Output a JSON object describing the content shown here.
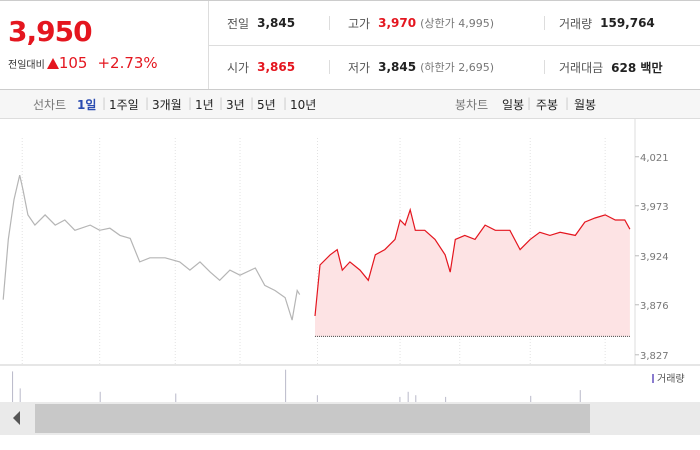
{
  "header": {
    "price": "3,950",
    "change_label": "전일대비",
    "change": "105",
    "change_rate": "+2.73%",
    "color": "#e4161f"
  },
  "stats": [
    [
      {
        "label": "전일",
        "value": "3,845"
      },
      {
        "label": "고가",
        "value": "3,970",
        "note": "(상한가 4,995)",
        "color": "#e4161f"
      },
      {
        "label": "거래량",
        "value": "159,764"
      }
    ],
    [
      {
        "label": "시가",
        "value": "3,865",
        "color": "#e4161f"
      },
      {
        "label": "저가",
        "value": "3,845",
        "note": "(하한가 2,695)"
      },
      {
        "label": "거래대금",
        "value": "628 백만"
      }
    ]
  ],
  "tabs": {
    "line_label": "선차트",
    "line_periods": [
      "1일",
      "1주일",
      "3개월",
      "1년",
      "3년",
      "5년",
      "10년"
    ],
    "selected": 0,
    "candle_label": "봉차트",
    "candle_periods": [
      "일봉",
      "주봉",
      "월봉"
    ]
  },
  "chart_data": {
    "type": "line",
    "xlim": [
      0,
      100
    ],
    "xticks": [
      3.5,
      15.7,
      27.6,
      37.8,
      50,
      63,
      72.4,
      83.5,
      95.3
    ],
    "ylim": [
      3817,
      4057
    ],
    "yticks": [
      {
        "value": 3827,
        "label": "3,827"
      },
      {
        "value": 3876,
        "label": "3,876"
      },
      {
        "value": 3924,
        "label": "3,924"
      },
      {
        "value": 3973,
        "label": "3,973"
      },
      {
        "value": 4021,
        "label": "4,021"
      }
    ],
    "baseline": 3845,
    "series": [
      {
        "color": "#b5b5b5",
        "fill": false,
        "x": [
          0.5,
          1.3,
          2.2,
          3.1,
          3.6,
          4.4,
          5.5,
          7.1,
          8.7,
          10.2,
          11.8,
          14.2,
          15.7,
          17.3,
          18.9,
          20.5,
          22,
          23.6,
          26,
          28.3,
          29.9,
          31.5,
          33.1,
          34.6,
          36.2,
          37.8,
          40.2,
          41.7,
          43.3,
          44.9,
          46,
          46.8,
          47.2
        ],
        "values": [
          3881,
          3940,
          3979,
          4003,
          3989,
          3964,
          3954,
          3964,
          3954,
          3959,
          3949,
          3954,
          3949,
          3951,
          3944,
          3941,
          3918,
          3922,
          3922,
          3918,
          3910,
          3918,
          3908,
          3900,
          3910,
          3905,
          3912,
          3895,
          3890,
          3883,
          3861,
          3890,
          3886
        ]
      },
      {
        "color": "#e4161f",
        "fill": true,
        "fill_color": "#fde3e4",
        "x": [
          49.6,
          50.4,
          52,
          53.1,
          53.9,
          55.1,
          56.7,
          58,
          59.1,
          60.6,
          62.2,
          63,
          63.8,
          64.6,
          65.4,
          66.9,
          68.5,
          70.1,
          70.9,
          71.7,
          73.2,
          74.8,
          76.4,
          78,
          80.3,
          81.9,
          83.5,
          85,
          86.6,
          88.2,
          90.6,
          92.1,
          93.7,
          95.3,
          96.9,
          98.4,
          99.2
        ],
        "values": [
          3865,
          3915,
          3925,
          3930,
          3910,
          3918,
          3910,
          3900,
          3925,
          3930,
          3940,
          3959,
          3954,
          3969,
          3949,
          3949,
          3940,
          3925,
          3908,
          3940,
          3944,
          3940,
          3954,
          3949,
          3949,
          3930,
          3940,
          3947,
          3944,
          3947,
          3944,
          3957,
          3961,
          3964,
          3959,
          3959,
          3950
        ]
      }
    ],
    "volume": {
      "name": "거래량",
      "color": "#b9b9c9",
      "ylim": [
        0,
        100
      ],
      "x": [
        1.9,
        3.1,
        15.7,
        27.6,
        44.9,
        49.9,
        62.9,
        64.2,
        65.4,
        70.1,
        83.5,
        91.3
      ],
      "values": [
        90,
        40,
        30,
        25,
        95,
        20,
        15,
        30,
        20,
        15,
        18,
        35
      ]
    }
  }
}
